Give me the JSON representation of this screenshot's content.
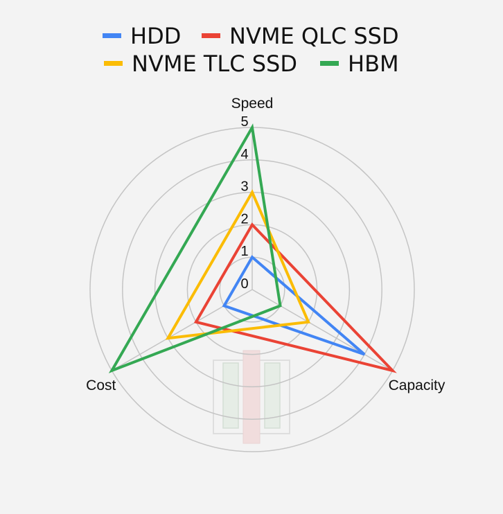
{
  "chart_data": {
    "type": "radar",
    "title": "",
    "axes": [
      "Speed",
      "Capacity",
      "Cost"
    ],
    "r_range": [
      0,
      5
    ],
    "r_ticks": [
      "0",
      "1",
      "2",
      "3",
      "4",
      "5"
    ],
    "grid": true,
    "legend_position": "top",
    "series": [
      {
        "name": "HDD",
        "color": "#4285f4",
        "values": [
          1,
          4,
          1
        ]
      },
      {
        "name": "NVME QLC SSD",
        "color": "#ea4335",
        "values": [
          2,
          5,
          2
        ]
      },
      {
        "name": "NVME TLC SSD",
        "color": "#fbbc04",
        "values": [
          3,
          2,
          3
        ]
      },
      {
        "name": "HBM",
        "color": "#34a853",
        "values": [
          5,
          1,
          5
        ]
      }
    ]
  }
}
